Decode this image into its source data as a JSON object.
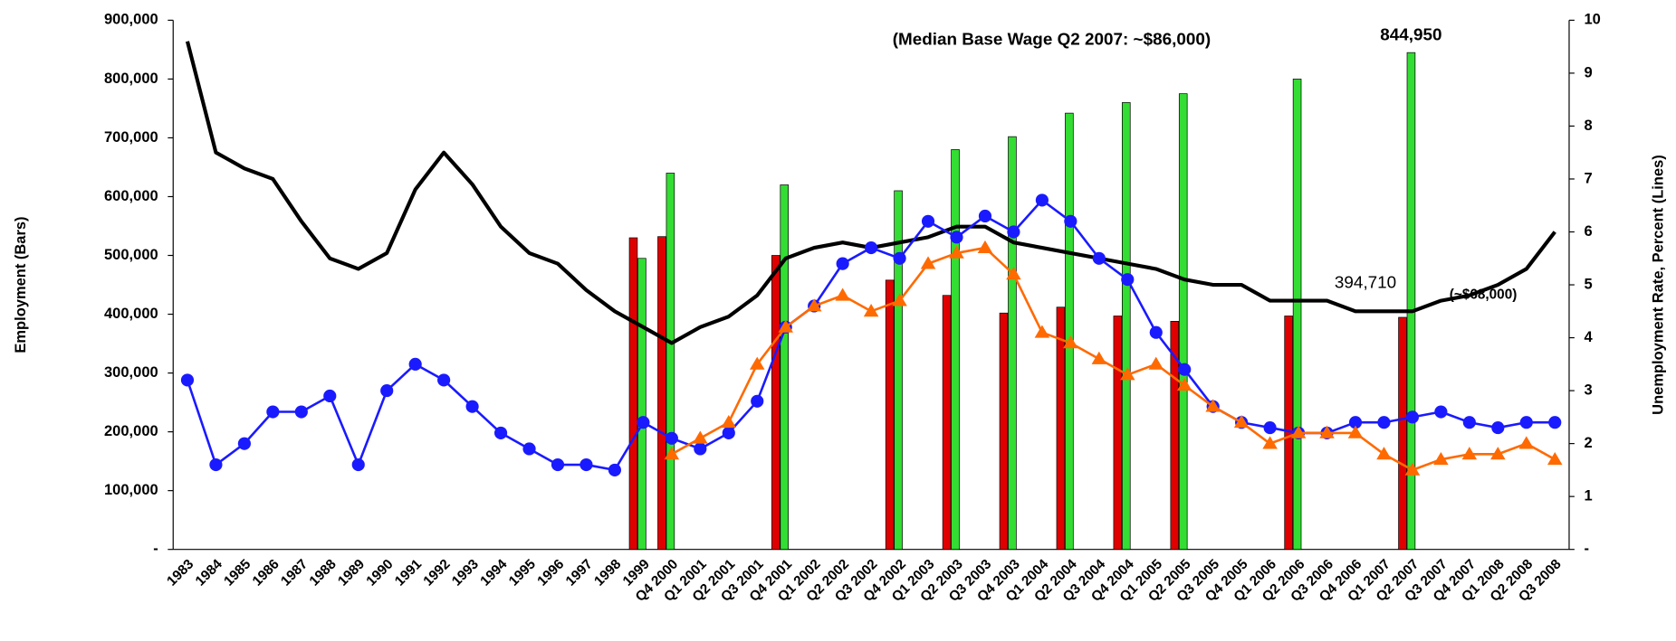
{
  "chart_data": {
    "type": "combo",
    "y_label": "Employment (Bars)",
    "y2_label": "Unemployment Rate, Percent (Lines)",
    "categories": [
      "1983",
      "1984",
      "1985",
      "1986",
      "1987",
      "1988",
      "1989",
      "1990",
      "1991",
      "1992",
      "1993",
      "1994",
      "1995",
      "1996",
      "1997",
      "1998",
      "1999",
      "Q4 2000",
      "Q1 2001",
      "Q2 2001",
      "Q3 2001",
      "Q4 2001",
      "Q1 2002",
      "Q2 2002",
      "Q3 2002",
      "Q4 2002",
      "Q1 2003",
      "Q2 2003",
      "Q3 2003",
      "Q4 2003",
      "Q1 2004",
      "Q2 2004",
      "Q3 2004",
      "Q4 2004",
      "Q1 2005",
      "Q2 2005",
      "Q3 2005",
      "Q4 2005",
      "Q1 2006",
      "Q2 2006",
      "Q3 2006",
      "Q4 2006",
      "Q1 2007",
      "Q2 2007",
      "Q3 2007",
      "Q4 2007",
      "Q1 2008",
      "Q2 2008",
      "Q3 2008"
    ],
    "ylim": [
      0,
      900000
    ],
    "yticks": [
      {
        "value": 0,
        "label": "-"
      },
      {
        "value": 100000,
        "label": "100,000"
      },
      {
        "value": 200000,
        "label": "200,000"
      },
      {
        "value": 300000,
        "label": "300,000"
      },
      {
        "value": 400000,
        "label": "400,000"
      },
      {
        "value": 500000,
        "label": "500,000"
      },
      {
        "value": 600000,
        "label": "600,000"
      },
      {
        "value": 700000,
        "label": "700,000"
      },
      {
        "value": 800000,
        "label": "800,000"
      },
      {
        "value": 900000,
        "label": "900,000"
      }
    ],
    "y2lim": [
      0,
      10
    ],
    "y2ticks": [
      {
        "value": 0,
        "label": "-"
      },
      1,
      2,
      3,
      4,
      5,
      6,
      7,
      8,
      9,
      10
    ],
    "grid": false,
    "series": [
      {
        "type": "bar",
        "axis": "y",
        "color": "#e00000",
        "values": [
          null,
          null,
          null,
          null,
          null,
          null,
          null,
          null,
          null,
          null,
          null,
          null,
          null,
          null,
          null,
          null,
          530000,
          532000,
          null,
          null,
          null,
          500000,
          null,
          null,
          null,
          458000,
          null,
          432000,
          null,
          402000,
          null,
          412000,
          null,
          397000,
          null,
          388000,
          null,
          null,
          null,
          397000,
          null,
          null,
          null,
          394710,
          null,
          null,
          null,
          null,
          null
        ],
        "value_labels": [
          null,
          null,
          null,
          null,
          null,
          null,
          null,
          null,
          null,
          null,
          null,
          null,
          null,
          null,
          null,
          null,
          null,
          null,
          null,
          null,
          null,
          null,
          null,
          null,
          null,
          null,
          null,
          null,
          null,
          null,
          null,
          null,
          null,
          null,
          null,
          null,
          null,
          null,
          null,
          null,
          null,
          null,
          null,
          "394,710",
          null,
          null,
          null,
          null,
          null
        ]
      },
      {
        "type": "bar",
        "axis": "y",
        "color": "#33dd33",
        "values": [
          null,
          null,
          null,
          null,
          null,
          null,
          null,
          null,
          null,
          null,
          null,
          null,
          null,
          null,
          null,
          null,
          495000,
          640000,
          null,
          null,
          null,
          620000,
          null,
          null,
          null,
          610000,
          null,
          680000,
          null,
          702000,
          null,
          742000,
          null,
          760000,
          null,
          775000,
          null,
          null,
          null,
          800000,
          null,
          null,
          null,
          844950,
          null,
          null,
          null,
          null,
          null
        ],
        "value_labels": [
          null,
          null,
          null,
          null,
          null,
          null,
          null,
          null,
          null,
          null,
          null,
          null,
          null,
          null,
          null,
          null,
          null,
          null,
          null,
          null,
          null,
          null,
          null,
          null,
          null,
          null,
          null,
          null,
          null,
          null,
          null,
          null,
          null,
          null,
          null,
          null,
          null,
          null,
          null,
          null,
          null,
          null,
          null,
          "844,950",
          null,
          null,
          null,
          null,
          null
        ]
      },
      {
        "type": "line",
        "axis": "y2",
        "color": "#000000",
        "marker": "none",
        "values": [
          9.6,
          7.5,
          7.2,
          7.0,
          6.2,
          5.5,
          5.3,
          5.6,
          6.8,
          7.5,
          6.9,
          6.1,
          5.6,
          5.4,
          4.9,
          4.5,
          4.2,
          3.9,
          4.2,
          4.4,
          4.8,
          5.5,
          5.7,
          5.8,
          5.7,
          5.8,
          5.9,
          6.1,
          6.1,
          5.8,
          5.7,
          5.6,
          5.5,
          5.4,
          5.3,
          5.1,
          5.0,
          5.0,
          4.7,
          4.7,
          4.7,
          4.5,
          4.5,
          4.5,
          4.7,
          4.8,
          5.0,
          5.3,
          6.0
        ]
      },
      {
        "type": "line",
        "axis": "y2",
        "color": "#1a1aff",
        "marker": "circle",
        "values": [
          3.2,
          1.6,
          2.0,
          2.6,
          2.6,
          2.9,
          1.6,
          3.0,
          3.5,
          3.2,
          2.7,
          2.2,
          1.9,
          1.6,
          1.6,
          1.5,
          2.4,
          2.1,
          1.9,
          2.2,
          2.8,
          4.2,
          4.6,
          5.4,
          5.7,
          5.5,
          6.2,
          5.9,
          6.3,
          6.0,
          6.6,
          6.2,
          5.5,
          5.1,
          4.1,
          3.4,
          2.7,
          2.4,
          2.3,
          2.2,
          2.2,
          2.4,
          2.4,
          2.5,
          2.6,
          2.4,
          2.3,
          2.4,
          2.4
        ]
      },
      {
        "type": "line",
        "axis": "y2",
        "color": "#ff6a00",
        "marker": "triangle",
        "values": [
          null,
          null,
          null,
          null,
          null,
          null,
          null,
          null,
          null,
          null,
          null,
          null,
          null,
          null,
          null,
          null,
          null,
          1.8,
          2.1,
          2.4,
          3.5,
          4.2,
          4.6,
          4.8,
          4.5,
          4.7,
          5.4,
          5.6,
          5.7,
          5.2,
          4.1,
          3.9,
          3.6,
          3.3,
          3.5,
          3.1,
          2.7,
          2.4,
          2.0,
          2.2,
          2.2,
          2.2,
          1.8,
          1.5,
          1.7,
          1.8,
          1.8,
          2.0,
          1.7
        ]
      }
    ],
    "annotations": [
      "(Median Base Wage Q2 2007: ~$86,000)",
      "(~$68,000)"
    ]
  }
}
